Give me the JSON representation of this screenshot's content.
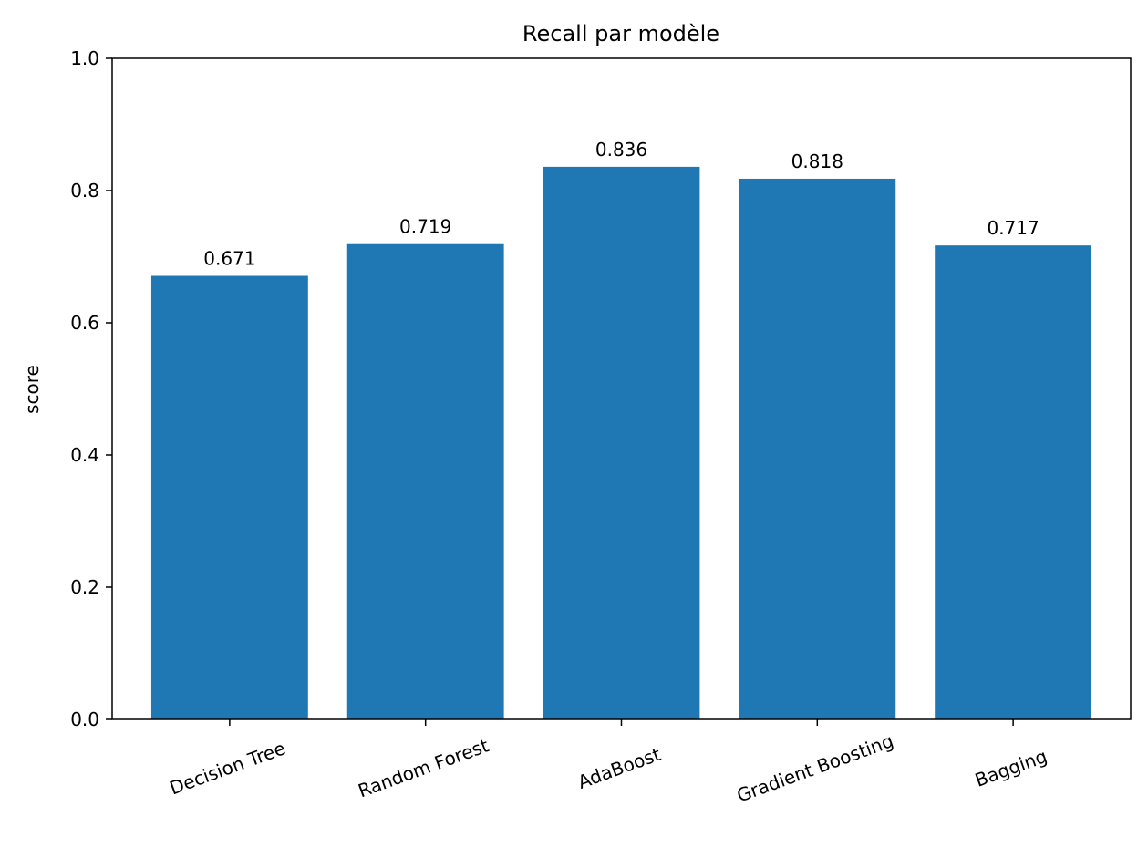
{
  "chart_data": {
    "type": "bar",
    "title": "Recall par modèle",
    "xlabel": "",
    "ylabel": "score",
    "categories": [
      "Decision Tree",
      "Random Forest",
      "AdaBoost",
      "Gradient Boosting",
      "Bagging"
    ],
    "values": [
      0.671,
      0.719,
      0.836,
      0.818,
      0.717
    ],
    "value_labels": [
      "0.671",
      "0.719",
      "0.836",
      "0.818",
      "0.717"
    ],
    "ylim": [
      0,
      1.0
    ],
    "yticks": [
      0.0,
      0.2,
      0.4,
      0.6,
      0.8,
      1.0
    ],
    "ytick_labels": [
      "0.0",
      "0.2",
      "0.4",
      "0.6",
      "0.8",
      "1.0"
    ],
    "bar_color": "#1f77b4",
    "grid": false,
    "legend": "none"
  }
}
